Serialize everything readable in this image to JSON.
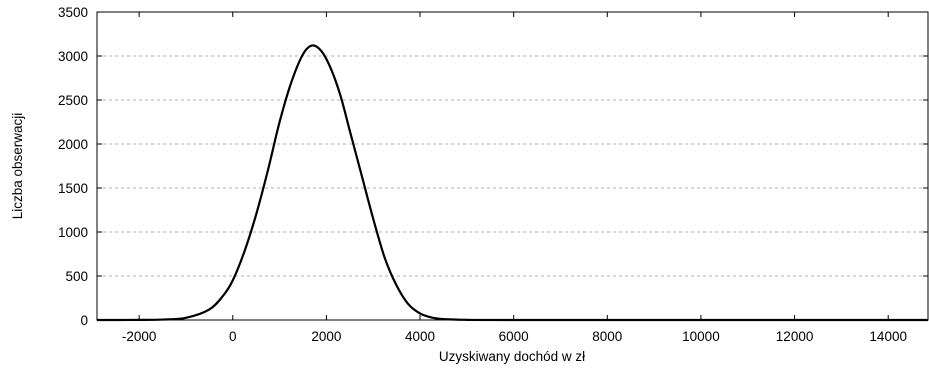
{
  "chart_data": {
    "type": "line",
    "title": "",
    "xlabel": "Uzyskiwany dochód w zł",
    "ylabel": "Liczba obserwacji",
    "xlim": [
      -2900,
      14850
    ],
    "ylim": [
      0,
      3500
    ],
    "x_ticks": [
      -2000,
      0,
      2000,
      4000,
      6000,
      8000,
      10000,
      12000,
      14000
    ],
    "y_ticks": [
      0,
      500,
      1000,
      1500,
      2000,
      2500,
      3000,
      3500
    ],
    "grid": {
      "horizontal": true,
      "vertical": false,
      "style": "dashed"
    },
    "series": [
      {
        "color": "#000000",
        "points": [
          [
            -2900,
            0
          ],
          [
            -2000,
            1
          ],
          [
            -1500,
            5
          ],
          [
            -1000,
            25
          ],
          [
            -500,
            120
          ],
          [
            -200,
            280
          ],
          [
            0,
            450
          ],
          [
            250,
            780
          ],
          [
            500,
            1200
          ],
          [
            750,
            1700
          ],
          [
            1000,
            2250
          ],
          [
            1250,
            2700
          ],
          [
            1500,
            3020
          ],
          [
            1700,
            3120
          ],
          [
            1900,
            3050
          ],
          [
            2100,
            2850
          ],
          [
            2300,
            2550
          ],
          [
            2500,
            2150
          ],
          [
            2750,
            1650
          ],
          [
            3000,
            1150
          ],
          [
            3250,
            700
          ],
          [
            3500,
            390
          ],
          [
            3750,
            180
          ],
          [
            4000,
            75
          ],
          [
            4250,
            28
          ],
          [
            4500,
            10
          ],
          [
            5000,
            2
          ],
          [
            6000,
            0
          ],
          [
            14850,
            0
          ]
        ]
      }
    ]
  }
}
